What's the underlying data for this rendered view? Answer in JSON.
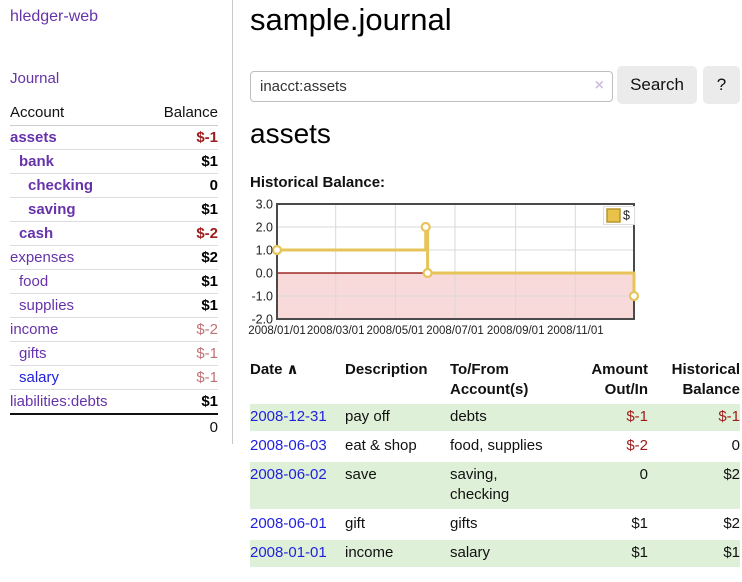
{
  "sidebar": {
    "brand": "hledger-web",
    "journal_link": "Journal",
    "table": {
      "col_account": "Account",
      "col_balance": "Balance",
      "accounts": [
        {
          "name": "assets",
          "indent": 0,
          "emph": true,
          "link": "purple",
          "balance": "$-1",
          "bclass": "neg-strong"
        },
        {
          "name": "bank",
          "indent": 1,
          "emph": true,
          "link": "purple",
          "balance": "$1",
          "bclass": "pos-strong"
        },
        {
          "name": "checking",
          "indent": 2,
          "emph": true,
          "link": "purple",
          "balance": "0",
          "bclass": "pos-strong"
        },
        {
          "name": "saving",
          "indent": 2,
          "emph": true,
          "link": "purple",
          "balance": "$1",
          "bclass": "pos-strong"
        },
        {
          "name": "cash",
          "indent": 1,
          "emph": true,
          "link": "purple",
          "balance": "$-2",
          "bclass": "neg-strong"
        },
        {
          "name": "expenses",
          "indent": 0,
          "emph": false,
          "link": "purple",
          "balance": "$2",
          "bclass": "pos-strong"
        },
        {
          "name": "food",
          "indent": 1,
          "emph": false,
          "link": "purple",
          "balance": "$1",
          "bclass": "pos-strong"
        },
        {
          "name": "supplies",
          "indent": 1,
          "emph": false,
          "link": "purple",
          "balance": "$1",
          "bclass": "pos-strong"
        },
        {
          "name": "income",
          "indent": 0,
          "emph": false,
          "link": "purple",
          "balance": "$-2",
          "bclass": "neg-soft"
        },
        {
          "name": "gifts",
          "indent": 1,
          "emph": false,
          "link": "purple",
          "balance": "$-1",
          "bclass": "neg-soft"
        },
        {
          "name": "salary",
          "indent": 1,
          "emph": false,
          "link": "blue",
          "balance": "$-1",
          "bclass": "neg-soft"
        },
        {
          "name": "liabilities:debts",
          "indent": 0,
          "emph": false,
          "link": "purple",
          "balance": "$1",
          "bclass": "pos-strong"
        }
      ],
      "total": "0"
    }
  },
  "main": {
    "title": "sample.journal",
    "search": {
      "value": "inacct:assets",
      "clear_icon": "×",
      "search_button": "Search",
      "help_button": "?"
    },
    "account_heading": "assets",
    "chart_heading": "Historical Balance:"
  },
  "chart_data": {
    "type": "line",
    "step": true,
    "title": "Historical Balance",
    "legend": {
      "label": "$",
      "position": "top-right",
      "swatch_color": "#e9c349",
      "swatch_border": "#b9952e"
    },
    "x_range": [
      "2008-01-01",
      "2008-12-31"
    ],
    "ylim": [
      -2,
      3
    ],
    "y_ticks": [
      "3.0",
      "2.0",
      "1.0",
      "0.0",
      "-1.0",
      "-2.0"
    ],
    "x_ticks": [
      "2008/01/01",
      "2008/03/01",
      "2008/05/01",
      "2008/07/01",
      "2008/09/01",
      "2008/11/01"
    ],
    "series": [
      {
        "name": "$",
        "points": [
          {
            "date": "2008-01-01",
            "value": 1
          },
          {
            "date": "2008-06-01",
            "value": 2
          },
          {
            "date": "2008-06-03",
            "value": 0
          },
          {
            "date": "2008-12-31",
            "value": -1
          }
        ]
      }
    ],
    "colors": {
      "line": "#e7c45a",
      "marker_fill": "#ffffff",
      "zero_line": "#8b0000",
      "negative_fill": "#f9dada",
      "grid": "#d9d9d9",
      "border": "#4a4a4a"
    }
  },
  "register": {
    "headers": {
      "date": "Date",
      "sort_icon": "∧",
      "description": "Description",
      "accounts": "To/From\nAccount(s)",
      "amount": "Amount\nOut/In",
      "balance": "Historical\nBalance"
    },
    "rows": [
      {
        "date": "2008-12-31",
        "description": "pay off",
        "accounts": "debts",
        "amount": "$-1",
        "amount_neg": true,
        "balance": "$-1",
        "balance_neg": true
      },
      {
        "date": "2008-06-03",
        "description": "eat & shop",
        "accounts": "food, supplies",
        "amount": "$-2",
        "amount_neg": true,
        "balance": "0",
        "balance_neg": false
      },
      {
        "date": "2008-06-02",
        "description": "save",
        "accounts": "saving,\nchecking",
        "amount": "0",
        "amount_neg": false,
        "balance": "$2",
        "balance_neg": false
      },
      {
        "date": "2008-06-01",
        "description": "gift",
        "accounts": "gifts",
        "amount": "$1",
        "amount_neg": false,
        "balance": "$2",
        "balance_neg": false
      },
      {
        "date": "2008-01-01",
        "description": "income",
        "accounts": "salary",
        "amount": "$1",
        "amount_neg": false,
        "balance": "$1",
        "balance_neg": false
      }
    ]
  },
  "colors": {
    "link_purple": "#6633aa",
    "link_blue": "#2222dd",
    "neg_strong": "#a01c1c",
    "neg_soft": "#bf7276",
    "row_shade": "#dff0d8"
  }
}
